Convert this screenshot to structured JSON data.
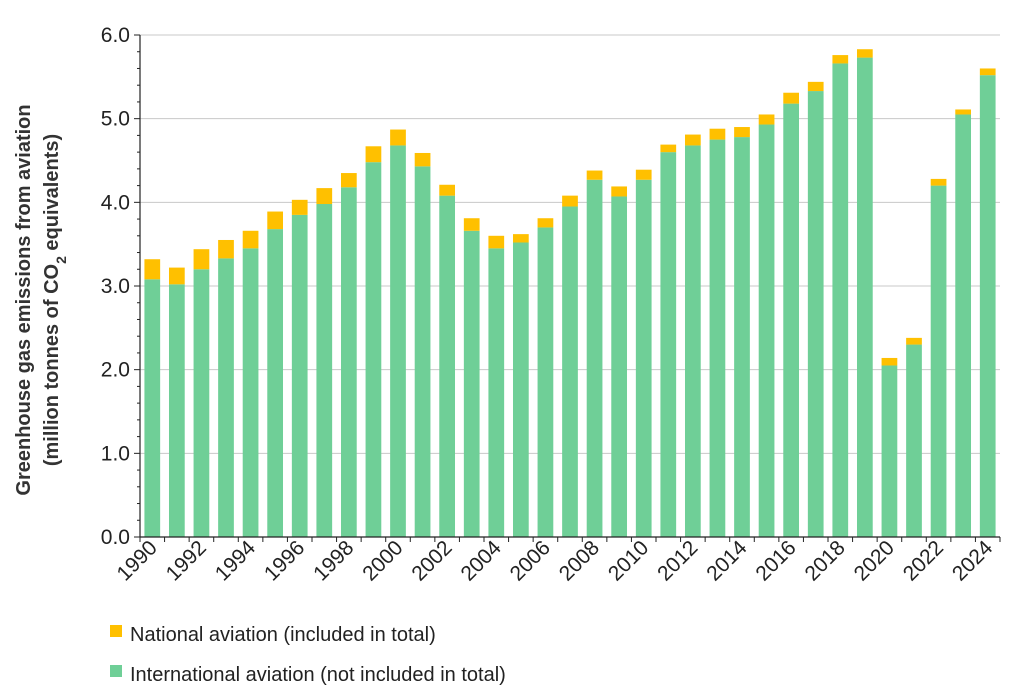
{
  "chart_data": {
    "type": "bar",
    "stacked": true,
    "categories": [
      "1990",
      "1991",
      "1992",
      "1993",
      "1994",
      "1995",
      "1996",
      "1997",
      "1998",
      "1999",
      "2000",
      "2001",
      "2002",
      "2003",
      "2004",
      "2005",
      "2006",
      "2007",
      "2008",
      "2009",
      "2010",
      "2011",
      "2012",
      "2013",
      "2014",
      "2015",
      "2016",
      "2017",
      "2018",
      "2019",
      "2020",
      "2021",
      "2022",
      "2023",
      "2024"
    ],
    "x_tick_labels": [
      "1990",
      "1992",
      "1994",
      "1996",
      "1998",
      "2000",
      "2002",
      "2004",
      "2006",
      "2008",
      "2010",
      "2012",
      "2014",
      "2016",
      "2018",
      "2020",
      "2022",
      "2024"
    ],
    "series": [
      {
        "name": "International aviation (not included in total)",
        "color": "#6fcf97",
        "values": [
          3.08,
          3.02,
          3.2,
          3.33,
          3.45,
          3.68,
          3.85,
          3.98,
          4.18,
          4.48,
          4.68,
          4.43,
          4.08,
          3.66,
          3.45,
          3.52,
          3.7,
          3.95,
          4.27,
          4.07,
          4.27,
          4.6,
          4.68,
          4.75,
          4.78,
          4.93,
          5.18,
          5.33,
          5.66,
          5.73,
          2.05,
          2.3,
          4.2,
          5.05,
          5.52
        ]
      },
      {
        "name": "National aviation (included in total)",
        "color": "#ffc000",
        "values": [
          0.24,
          0.2,
          0.24,
          0.22,
          0.21,
          0.21,
          0.18,
          0.19,
          0.17,
          0.19,
          0.19,
          0.16,
          0.13,
          0.15,
          0.15,
          0.1,
          0.11,
          0.13,
          0.11,
          0.12,
          0.12,
          0.09,
          0.13,
          0.13,
          0.12,
          0.12,
          0.13,
          0.11,
          0.1,
          0.1,
          0.09,
          0.08,
          0.08,
          0.06,
          0.08
        ]
      }
    ],
    "ylabel_line1": "Greenhouse gas emissions from aviation",
    "ylabel_line2_prefix": "(million tonnes of CO",
    "ylabel_line2_sub": "2",
    "ylabel_line2_suffix": " equivalents)",
    "ylim": [
      0,
      6
    ],
    "y_ticks": [
      "0.0",
      "1.0",
      "2.0",
      "3.0",
      "4.0",
      "5.0",
      "6.0"
    ],
    "grid": true,
    "legend_position": "bottom-left"
  }
}
